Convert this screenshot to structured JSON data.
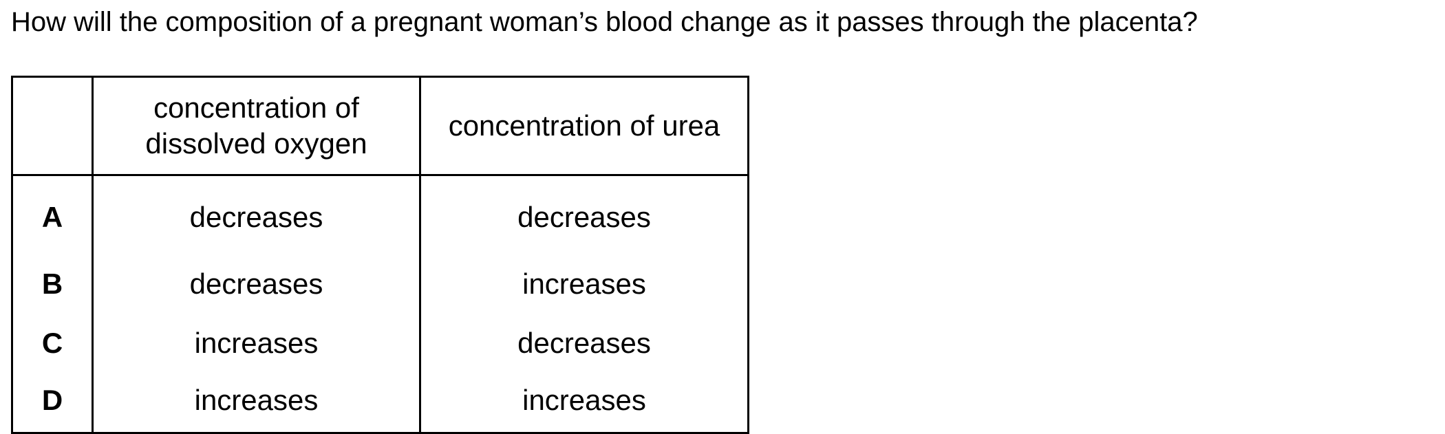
{
  "question": "How will the composition of a pregnant woman’s blood change as it passes through the placenta?",
  "table": {
    "headers": [
      "",
      "concentration of dissolved oxygen",
      "concentration of urea"
    ],
    "rows": [
      {
        "key": "A",
        "oxygen": "decreases",
        "urea": "decreases"
      },
      {
        "key": "B",
        "oxygen": "decreases",
        "urea": "increases"
      },
      {
        "key": "C",
        "oxygen": "increases",
        "urea": "decreases"
      },
      {
        "key": "D",
        "oxygen": "increases",
        "urea": "increases"
      }
    ]
  }
}
